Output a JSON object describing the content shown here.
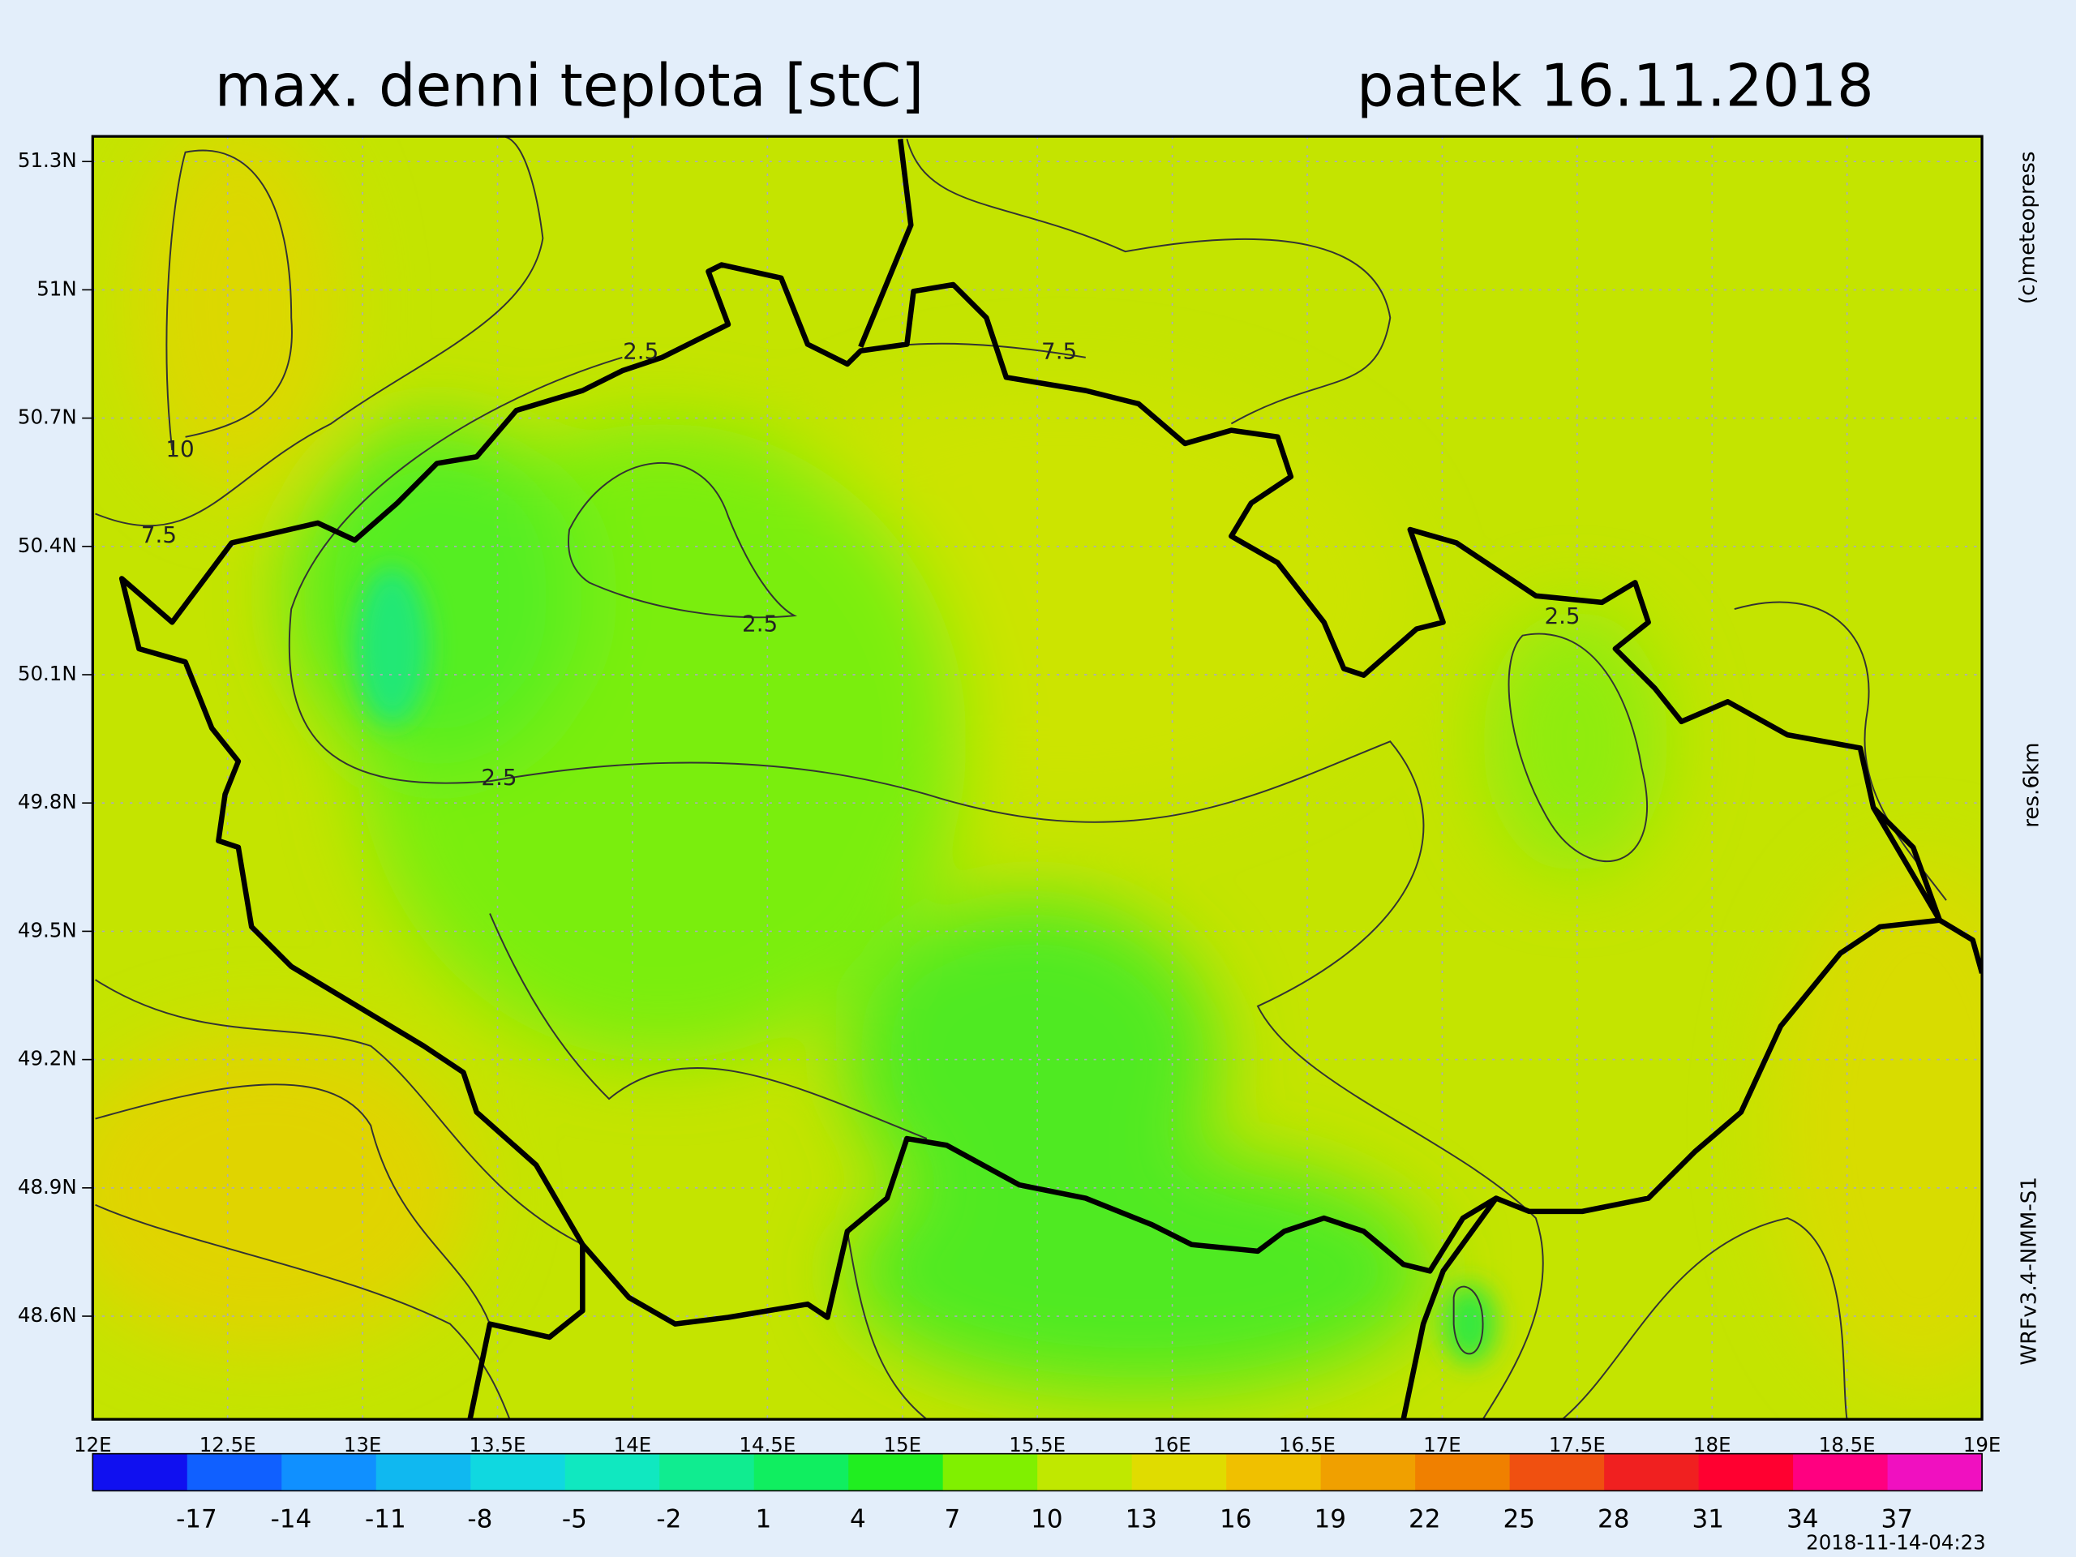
{
  "header": {
    "title": "max. denni teplota [stC]",
    "date": "patek 16.11.2018"
  },
  "map": {
    "lat_labels": [
      "51.3N",
      "51N",
      "50.7N",
      "50.4N",
      "50.1N",
      "49.8N",
      "49.5N",
      "49.2N",
      "48.9N",
      "48.6N"
    ],
    "lon_labels": [
      "12E",
      "12.5E",
      "13E",
      "13.5E",
      "14E",
      "14.5E",
      "15E",
      "15.5E",
      "16E",
      "16.5E",
      "17E",
      "17.5E",
      "18E",
      "18.5E",
      "19E"
    ],
    "contour_labels": [
      "2.5",
      "7.5",
      "10",
      "7.5",
      "2.5",
      "2.5",
      "2.5"
    ]
  },
  "colorbar": {
    "labels": [
      "-17",
      "-14",
      "-11",
      "-8",
      "-5",
      "-2",
      "1",
      "4",
      "7",
      "10",
      "13",
      "16",
      "19",
      "22",
      "25",
      "28",
      "31",
      "34",
      "37"
    ]
  },
  "side": {
    "copyright": "(c)meteopress",
    "resolution": "res.6km",
    "model": "WRFv3.4-NMM-S1"
  },
  "footer": {
    "timestamp": "2018-11-14-04:23"
  }
}
